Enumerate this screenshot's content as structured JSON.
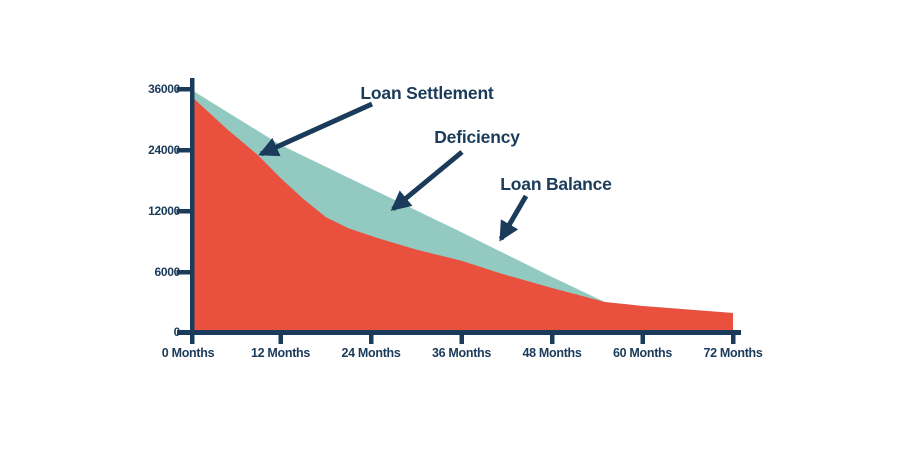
{
  "colors": {
    "navy": "#1b3b5a",
    "teal": "#92c9c1",
    "red": "#e9503d",
    "background": "#ffffff"
  },
  "chart_data": {
    "type": "area",
    "title": "",
    "x_axis": {
      "label": "",
      "tick_labels": [
        "0 Months",
        "12 Months",
        "24 Months",
        "36 Months",
        "48 Months",
        "60 Months",
        "72 Months"
      ],
      "tick_months": [
        0,
        12,
        24,
        36,
        48,
        60,
        72
      ]
    },
    "y_axis": {
      "label": "",
      "tick_labels": [
        "36000",
        "24000",
        "12000",
        "6000",
        "0"
      ],
      "tick_values": [
        36000,
        24000,
        12000,
        6000,
        0
      ],
      "note": "ticks are evenly spaced on screen but values are non-linear (0,6000,12000,24000,36000)"
    },
    "legend": "labels drawn as annotations with arrows, no legend box",
    "grid": false,
    "series": [
      {
        "name": "Loan Balance",
        "color": "#92c9c1",
        "points": [
          [
            0,
            36000
          ],
          [
            12,
            25000
          ],
          [
            24,
            16400
          ],
          [
            36,
            9900
          ],
          [
            48,
            5500
          ],
          [
            55,
            3000
          ],
          [
            60,
            2600
          ],
          [
            72,
            1900
          ]
        ]
      },
      {
        "name": "Loan Settlement",
        "color": "#e9503d",
        "points": [
          [
            0,
            34800
          ],
          [
            5,
            28000
          ],
          [
            9,
            23000
          ],
          [
            12,
            18500
          ],
          [
            15,
            14400
          ],
          [
            18,
            11400
          ],
          [
            21,
            10300
          ],
          [
            25,
            9300
          ],
          [
            30,
            8200
          ],
          [
            36,
            7100
          ],
          [
            41,
            5900
          ],
          [
            48,
            4400
          ],
          [
            55,
            3000
          ],
          [
            60,
            2600
          ],
          [
            72,
            1900
          ]
        ]
      }
    ],
    "deficiency_gap": {
      "description": "Deficiency is the teal wedge between Loan Balance and Loan Settlement, closing at ~55 months",
      "values_at_ticks": [
        1200,
        6500,
        6600,
        2800,
        1100,
        0,
        0
      ]
    },
    "annotations": [
      {
        "label": "Loan Settlement",
        "points_to": "red area boundary"
      },
      {
        "label": "Deficiency",
        "points_to": "teal wedge"
      },
      {
        "label": "Loan Balance",
        "points_to": "teal top line"
      }
    ]
  }
}
